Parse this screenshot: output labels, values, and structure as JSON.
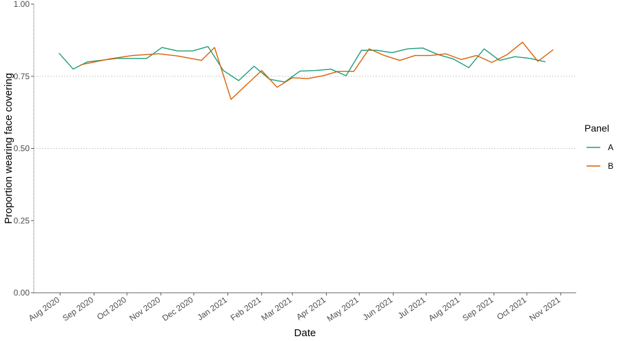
{
  "chart_data": {
    "type": "line",
    "title": "",
    "xlabel": "Date",
    "ylabel": "Proportion wearing face covering",
    "ylim": [
      0,
      1
    ],
    "y_ticks": [
      "0.00",
      "0.25",
      "0.50",
      "0.75",
      "1.00"
    ],
    "y_tick_values": [
      0,
      0.25,
      0.5,
      0.75,
      1.0
    ],
    "y_reference_line": 0.75,
    "x_range": [
      "2020-07-08",
      "2021-11-15"
    ],
    "x_ticks": [
      "Aug 2020",
      "Sep 2020",
      "Oct 2020",
      "Nov 2020",
      "Dec 2020",
      "Jan 2021",
      "Feb 2021",
      "Mar 2021",
      "Apr 2021",
      "May 2021",
      "Jun 2021",
      "Jul 2021",
      "Aug 2021",
      "Sep 2021",
      "Oct 2021",
      "Nov 2021"
    ],
    "x_tick_dates": [
      "2020-08-01",
      "2020-09-01",
      "2020-10-01",
      "2020-11-01",
      "2020-12-01",
      "2021-01-01",
      "2021-02-01",
      "2021-03-01",
      "2021-04-01",
      "2021-05-01",
      "2021-06-01",
      "2021-07-01",
      "2021-08-01",
      "2021-09-01",
      "2021-10-01",
      "2021-11-01"
    ],
    "legend": {
      "title": "Panel",
      "position": "right"
    },
    "series": [
      {
        "name": "A",
        "color": "#1b9e77",
        "x": [
          "2020-07-31",
          "2020-08-13",
          "2020-08-26",
          "2020-09-22",
          "2020-10-19",
          "2020-11-02",
          "2020-11-16",
          "2020-11-30",
          "2020-12-14",
          "2020-12-28",
          "2021-01-11",
          "2021-01-25",
          "2021-02-08",
          "2021-02-22",
          "2021-03-08",
          "2021-03-22",
          "2021-04-05",
          "2021-04-19",
          "2021-05-03",
          "2021-05-17",
          "2021-05-31",
          "2021-06-14",
          "2021-06-28",
          "2021-07-12",
          "2021-07-26",
          "2021-08-09",
          "2021-08-23",
          "2021-09-06",
          "2021-09-20",
          "2021-10-04",
          "2021-10-18"
        ],
        "y": [
          0.83,
          0.775,
          0.8,
          0.812,
          0.812,
          0.85,
          0.838,
          0.838,
          0.853,
          0.77,
          0.735,
          0.785,
          0.74,
          0.73,
          0.768,
          0.77,
          0.775,
          0.752,
          0.84,
          0.84,
          0.832,
          0.845,
          0.848,
          0.825,
          0.81,
          0.78,
          0.845,
          0.805,
          0.818,
          0.812,
          0.8
        ]
      },
      {
        "name": "B",
        "color": "#d95f02",
        "x": [
          "2020-08-20",
          "2020-09-15",
          "2020-10-06",
          "2020-10-30",
          "2020-11-17",
          "2020-12-08",
          "2020-12-20",
          "2021-01-04",
          "2021-01-18",
          "2021-02-01",
          "2021-02-15",
          "2021-03-01",
          "2021-03-15",
          "2021-03-29",
          "2021-04-12",
          "2021-04-26",
          "2021-05-10",
          "2021-05-24",
          "2021-06-07",
          "2021-06-21",
          "2021-07-05",
          "2021-07-19",
          "2021-08-02",
          "2021-08-16",
          "2021-08-30",
          "2021-09-13",
          "2021-09-27",
          "2021-10-11",
          "2021-10-25"
        ],
        "y": [
          0.79,
          0.81,
          0.822,
          0.828,
          0.82,
          0.805,
          0.85,
          0.67,
          0.72,
          0.77,
          0.712,
          0.745,
          0.742,
          0.752,
          0.767,
          0.767,
          0.845,
          0.822,
          0.805,
          0.822,
          0.822,
          0.828,
          0.808,
          0.822,
          0.798,
          0.825,
          0.868,
          0.802,
          0.842
        ]
      }
    ]
  }
}
